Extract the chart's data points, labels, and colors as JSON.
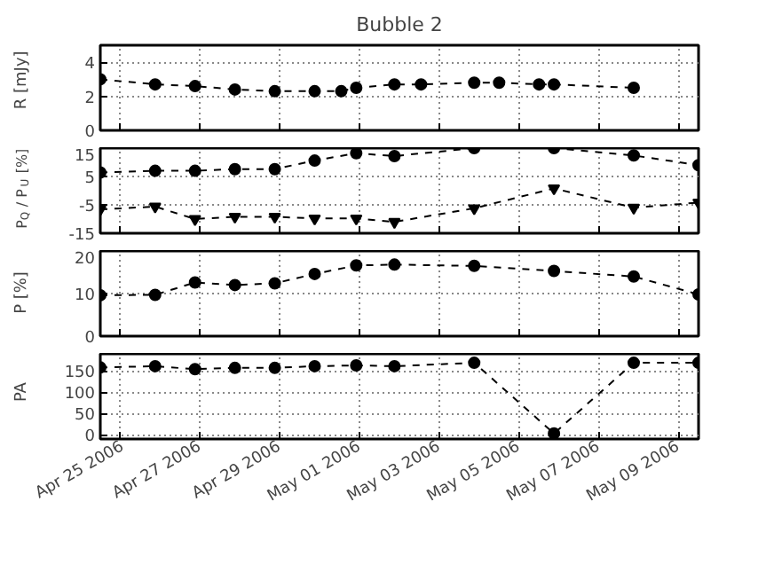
{
  "chart_data": [
    {
      "type": "line",
      "title": "Bubble 2",
      "ylabel": "R [mJy]",
      "xlim": [
        "2006-04-24T12:00",
        "2006-05-09T12:00"
      ],
      "ylim": [
        0,
        5
      ],
      "yticks": [
        0,
        2,
        4
      ],
      "xticks": [
        {
          "value": "2006-04-25",
          "label": null
        },
        {
          "value": "2006-04-27",
          "label": null
        },
        {
          "value": "2006-04-29",
          "label": null
        },
        {
          "value": "2006-05-01",
          "label": null
        },
        {
          "value": "2006-05-03",
          "label": null
        },
        {
          "value": "2006-05-05",
          "label": null
        },
        {
          "value": "2006-05-07",
          "label": null
        },
        {
          "value": "2006-05-09",
          "label": null
        }
      ],
      "tick_labels": "y",
      "grid": true,
      "marker": "circle",
      "line_style": "dashed",
      "series": [
        {
          "color": "#000000",
          "x": [
            "2006-04-24T12:00",
            "2006-04-25T21:00",
            "2006-04-26T21:00",
            "2006-04-27T21:00",
            "2006-04-28T21:00",
            "2006-04-29T21:00",
            "2006-04-30T13:00",
            "2006-04-30T22:00",
            "2006-05-01T21:00",
            "2006-05-02T13:00",
            "2006-05-03T21:00",
            "2006-05-04T12:00",
            "2006-05-05T12:00",
            "2006-05-05T21:00",
            "2006-05-07T21:00"
          ],
          "values": [
            3.0,
            2.7,
            2.6,
            2.4,
            2.3,
            2.3,
            2.3,
            2.5,
            2.7,
            2.7,
            2.8,
            2.8,
            2.7,
            2.7,
            2.5
          ]
        }
      ]
    },
    {
      "type": "line",
      "ylabel": "P$_{Q}$ / P$_{U}$ [%]",
      "xlim": [
        "2006-04-24T12:00",
        "2006-05-09T12:00"
      ],
      "ylim": [
        -15,
        15
      ],
      "yticks": [
        -15,
        -5,
        5,
        15
      ],
      "xticks": [
        {
          "value": "2006-04-25",
          "label": null
        },
        {
          "value": "2006-04-27",
          "label": null
        },
        {
          "value": "2006-04-29",
          "label": null
        },
        {
          "value": "2006-05-01",
          "label": null
        },
        {
          "value": "2006-05-03",
          "label": null
        },
        {
          "value": "2006-05-05",
          "label": null
        },
        {
          "value": "2006-05-07",
          "label": null
        },
        {
          "value": "2006-05-09",
          "label": null
        }
      ],
      "tick_labels": "y",
      "grid": true,
      "line_style": "dashed",
      "series": [
        {
          "color": "#000000",
          "marker": "circle",
          "x": [
            "2006-04-24T12:00",
            "2006-04-25T21:00",
            "2006-04-26T21:00",
            "2006-04-27T21:00",
            "2006-04-28T21:00",
            "2006-04-29T21:00",
            "2006-04-30T22:00",
            "2006-05-01T21:00",
            "2006-05-03T21:00",
            "2006-05-05T21:00",
            "2006-05-07T21:00",
            "2006-05-09T12:00"
          ],
          "values": [
            6.4,
            7.0,
            7.0,
            7.6,
            7.6,
            10.6,
            13.2,
            12.2,
            15.0,
            15.0,
            12.4,
            9.0
          ]
        },
        {
          "color": "#000000",
          "marker": "triangle",
          "x": [
            "2006-04-24T12:00",
            "2006-04-25T21:00",
            "2006-04-26T21:00",
            "2006-04-27T21:00",
            "2006-04-28T21:00",
            "2006-04-29T21:00",
            "2006-04-30T22:00",
            "2006-05-01T21:00",
            "2006-05-03T21:00",
            "2006-05-05T21:00",
            "2006-05-07T21:00",
            "2006-05-09T12:00"
          ],
          "values": [
            -6.6,
            -5.6,
            -10.0,
            -9.2,
            -9.2,
            -9.8,
            -9.8,
            -11.0,
            -6.2,
            0.8,
            -6.0,
            -4.2
          ]
        }
      ]
    },
    {
      "type": "line",
      "ylabel": "P [%]",
      "xlim": [
        "2006-04-24T12:00",
        "2006-05-09T12:00"
      ],
      "ylim": [
        0,
        20
      ],
      "yticks": [
        0,
        10,
        20
      ],
      "xticks": [
        {
          "value": "2006-04-25",
          "label": null
        },
        {
          "value": "2006-04-27",
          "label": null
        },
        {
          "value": "2006-04-29",
          "label": null
        },
        {
          "value": "2006-05-01",
          "label": null
        },
        {
          "value": "2006-05-03",
          "label": null
        },
        {
          "value": "2006-05-05",
          "label": null
        },
        {
          "value": "2006-05-07",
          "label": null
        },
        {
          "value": "2006-05-09",
          "label": null
        }
      ],
      "tick_labels": "y",
      "grid": true,
      "marker": "circle",
      "line_style": "dashed",
      "series": [
        {
          "color": "#000000",
          "x": [
            "2006-04-24T12:00",
            "2006-04-25T21:00",
            "2006-04-26T21:00",
            "2006-04-27T21:00",
            "2006-04-28T21:00",
            "2006-04-29T21:00",
            "2006-04-30T22:00",
            "2006-05-01T21:00",
            "2006-05-03T21:00",
            "2006-05-05T21:00",
            "2006-05-07T21:00",
            "2006-05-09T12:00"
          ],
          "values": [
            9.6,
            9.7,
            12.6,
            12.0,
            12.4,
            14.6,
            16.6,
            16.8,
            16.5,
            15.3,
            14.0,
            9.8
          ]
        }
      ]
    },
    {
      "type": "line",
      "ylabel": "PA",
      "xlim": [
        "2006-04-24T12:00",
        "2006-05-09T12:00"
      ],
      "ylim": [
        -10,
        190
      ],
      "yticks": [
        0,
        50,
        100,
        150
      ],
      "xticks": [
        {
          "value": "2006-04-25",
          "label": "Apr 25 2006"
        },
        {
          "value": "2006-04-27",
          "label": "Apr 27 2006"
        },
        {
          "value": "2006-04-29",
          "label": "Apr 29 2006"
        },
        {
          "value": "2006-05-01",
          "label": "May 01 2006"
        },
        {
          "value": "2006-05-03",
          "label": "May 03 2006"
        },
        {
          "value": "2006-05-05",
          "label": "May 05 2006"
        },
        {
          "value": "2006-05-07",
          "label": "May 07 2006"
        },
        {
          "value": "2006-05-09",
          "label": "May 09 2006"
        }
      ],
      "grid": true,
      "marker": "circle",
      "line_style": "dashed",
      "series": [
        {
          "color": "#000000",
          "x": [
            "2006-04-24T12:00",
            "2006-04-25T21:00",
            "2006-04-26T21:00",
            "2006-04-27T21:00",
            "2006-04-28T21:00",
            "2006-04-29T21:00",
            "2006-04-30T22:00",
            "2006-05-01T21:00",
            "2006-05-03T21:00",
            "2006-05-05T21:00",
            "2006-05-07T21:00",
            "2006-05-09T12:00"
          ],
          "values": [
            158,
            161,
            154,
            157,
            157,
            161,
            163,
            161,
            169,
            3,
            169,
            169
          ]
        }
      ]
    }
  ]
}
